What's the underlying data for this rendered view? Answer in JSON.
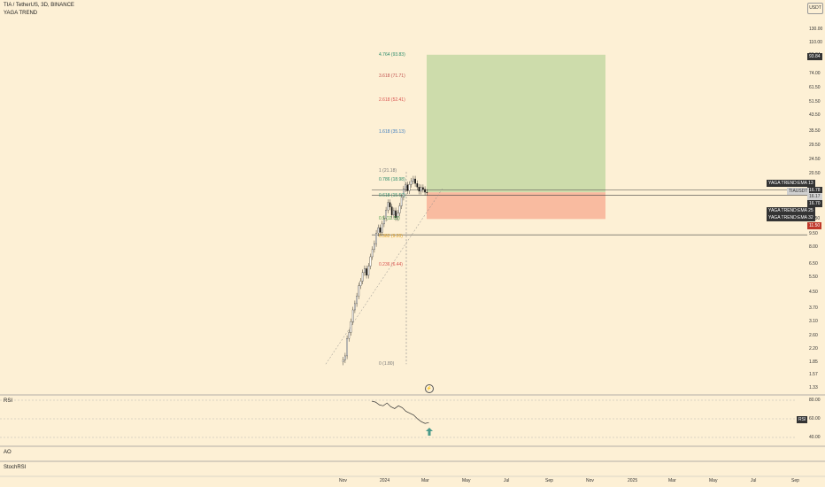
{
  "header": {
    "symbol_line": "TIA / TetherUS, 3D, BINANCE",
    "indicator": "YAGA TREND",
    "currency_button": "USDT"
  },
  "price_axis": {
    "ticks": [
      "130.00",
      "110.00",
      "93.84",
      "74.00",
      "61.50",
      "51.50",
      "43.50",
      "35.50",
      "29.50",
      "24.50",
      "20.50",
      "16.70",
      "11.50",
      "9.50",
      "8.00",
      "6.50",
      "5.50",
      "4.50",
      "3.70",
      "3.10",
      "2.60",
      "2.20",
      "1.85",
      "1.57",
      "1.33"
    ],
    "top_label": "USDT"
  },
  "badges": {
    "target": "93.84",
    "ema13": "YAGA TREND:EMA 13",
    "ema13_val": "16.78",
    "pair": "TIAUSDT",
    "pair_val": "16.17",
    "ema13b": "16.70",
    "ema25": "YAGA TREND:EMA 25",
    "ema32": "YAGA TREND:EMA 32",
    "stop": "11.50"
  },
  "fib_levels": [
    {
      "label": "4.764 (93.83)",
      "color": "#2a8a6a"
    },
    {
      "label": "3.618 (71.71)",
      "color": "#c0504d"
    },
    {
      "label": "2.618 (52.41)",
      "color": "#d9534f"
    },
    {
      "label": "1.618 (35.13)",
      "color": "#3a7bbf"
    },
    {
      "label": "1 (21.18)",
      "color": "#777777"
    },
    {
      "label": "0.786 (18.98)",
      "color": "#2a8a6a"
    },
    {
      "label": "0.618 (15.57)",
      "color": "#2a8a6a"
    },
    {
      "label": "0.5 (11.52)",
      "color": "#4a9a4a"
    },
    {
      "label": "0.382 (9.20)",
      "color": "#e0a020"
    },
    {
      "label": "0.236 (6.44)",
      "color": "#d9534f"
    },
    {
      "label": "0 (1.80)",
      "color": "#777777"
    }
  ],
  "rsi": {
    "label": "RSI",
    "badge": "RSI",
    "ticks": [
      "80.00",
      "60.00",
      "40.00"
    ]
  },
  "ao": {
    "label": "AO"
  },
  "stochrsi": {
    "label": "StochRSI"
  },
  "time_axis": [
    "Nov",
    "2024",
    "Mar",
    "May",
    "Jul",
    "Sep",
    "Nov",
    "2025",
    "Mar",
    "May",
    "Jul",
    "Sep"
  ],
  "colors": {
    "background": "#fdf0d5",
    "profit_zone": "#c8d9a6",
    "loss_zone": "#f8b59a",
    "candle_up": "#ffffff",
    "candle_down": "#111111",
    "rsi_line": "#333333",
    "arrow": "#4a9a8a"
  },
  "chart_data": {
    "type": "candlestick",
    "scale": "log",
    "candles_close": [
      1.9,
      2.0,
      2.5,
      2.7,
      3.1,
      3.6,
      3.9,
      4.3,
      4.9,
      5.2,
      5.8,
      6.1,
      5.6,
      6.3,
      7.1,
      7.8,
      8.4,
      9.6,
      10.3,
      9.7,
      10.8,
      11.6,
      12.9,
      14.2,
      13.4,
      12.1,
      12.8,
      11.7,
      12.4,
      13.6,
      15.2,
      16.9,
      17.8,
      16.5,
      17.9,
      18.7,
      19.2,
      18.1,
      17.3,
      16.4,
      17.2,
      16.8,
      16.2,
      16.17
    ],
    "position_entry": 16.17,
    "position_target": 93.84,
    "position_stop": 11.5,
    "rsi_values": [
      79,
      78,
      75,
      74,
      77,
      73,
      71,
      74,
      72,
      68,
      66,
      64,
      60,
      57,
      55,
      56
    ]
  }
}
